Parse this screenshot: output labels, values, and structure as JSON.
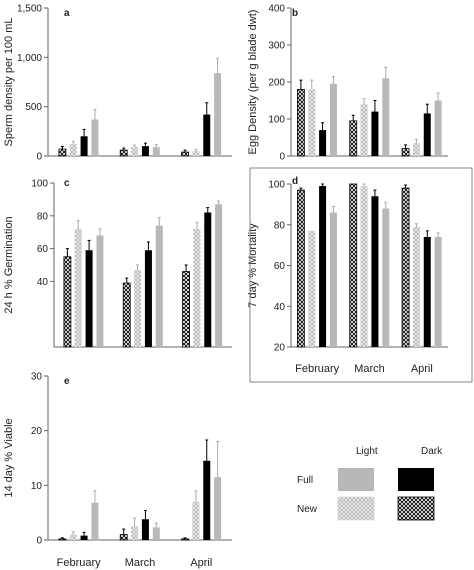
{
  "colors": {
    "full_light": "#b8b8b8",
    "full_dark": "#000000",
    "new_light_fill": "#e6e6e6",
    "new_dark_fill": "#ffffff",
    "error": "#444444"
  },
  "legend": {
    "col_light": "Light",
    "col_dark": "Dark",
    "row_full": "Full",
    "row_new": "New"
  },
  "chart_data": [
    {
      "letter": "a",
      "type": "bar",
      "ylabel": "Sperm density per 100 mL",
      "ylim": [
        0,
        1500
      ],
      "yticks": [
        0,
        500,
        1000,
        1500
      ],
      "yticklabels": [
        "0",
        "500",
        "1,000",
        "1,500"
      ],
      "categories": [
        "February",
        "March",
        "April"
      ],
      "show_categories": false,
      "series": [
        {
          "name": "New Dark",
          "values": [
            70,
            60,
            40
          ],
          "errors": [
            25,
            20,
            20
          ]
        },
        {
          "name": "New Light",
          "values": [
            120,
            90,
            50
          ],
          "errors": [
            30,
            20,
            15
          ]
        },
        {
          "name": "Full Dark",
          "values": [
            200,
            100,
            420
          ],
          "errors": [
            70,
            30,
            120
          ]
        },
        {
          "name": "Full Light",
          "values": [
            370,
            90,
            840
          ],
          "errors": [
            100,
            25,
            150
          ]
        }
      ]
    },
    {
      "letter": "b",
      "type": "bar",
      "ylabel": "Egg Density (per g blade dwt)",
      "ylim": [
        0,
        400
      ],
      "yticks": [
        0,
        100,
        200,
        300,
        400
      ],
      "yticklabels": [
        "0",
        "100",
        "200",
        "300",
        "400"
      ],
      "categories": [
        "February",
        "March",
        "April"
      ],
      "show_categories": false,
      "series": [
        {
          "name": "New Dark",
          "values": [
            180,
            95,
            20
          ],
          "errors": [
            25,
            15,
            10
          ]
        },
        {
          "name": "New Light",
          "values": [
            180,
            140,
            35
          ],
          "errors": [
            25,
            15,
            10
          ]
        },
        {
          "name": "Full Dark",
          "values": [
            70,
            120,
            115
          ],
          "errors": [
            20,
            30,
            25
          ]
        },
        {
          "name": "Full Light",
          "values": [
            195,
            210,
            150
          ],
          "errors": [
            20,
            30,
            20
          ]
        }
      ]
    },
    {
      "letter": "c",
      "type": "bar",
      "ylabel": "24 h % Germination",
      "ylim": [
        0,
        100
      ],
      "yticks": [
        40,
        60,
        80,
        100
      ],
      "yticklabels": [
        "40",
        "60",
        "80",
        "100"
      ],
      "categories": [
        "February",
        "March",
        "April"
      ],
      "show_categories": false,
      "series": [
        {
          "name": "New Dark",
          "values": [
            55,
            39,
            46
          ],
          "errors": [
            5,
            3,
            4
          ]
        },
        {
          "name": "New Light",
          "values": [
            72,
            47,
            72
          ],
          "errors": [
            5,
            3,
            4
          ]
        },
        {
          "name": "Full Dark",
          "values": [
            59,
            59,
            82
          ],
          "errors": [
            6,
            5,
            3
          ]
        },
        {
          "name": "Full Light",
          "values": [
            68,
            74,
            87
          ],
          "errors": [
            4,
            5,
            2
          ]
        }
      ]
    },
    {
      "letter": "d",
      "type": "bar",
      "ylabel": "7 day % Mortality",
      "ylim": [
        20,
        100
      ],
      "yticks": [
        20,
        40,
        60,
        80,
        100
      ],
      "yticklabels": [
        "20",
        "40",
        "60",
        "80",
        "100"
      ],
      "categories": [
        "February",
        "March",
        "April"
      ],
      "show_categories": true,
      "series": [
        {
          "name": "New Dark",
          "values": [
            97,
            100,
            98
          ],
          "errors": [
            1,
            0,
            1.5
          ]
        },
        {
          "name": "New Light",
          "values": [
            77,
            99,
            79
          ],
          "errors": [
            0,
            1,
            1.5
          ]
        },
        {
          "name": "Full Dark",
          "values": [
            99,
            94,
            74
          ],
          "errors": [
            1,
            3,
            3
          ]
        },
        {
          "name": "Full Light",
          "values": [
            86,
            88,
            74
          ],
          "errors": [
            3,
            3,
            2
          ]
        }
      ]
    },
    {
      "letter": "e",
      "type": "bar",
      "ylabel": "14 day % Viable",
      "ylim": [
        0,
        30
      ],
      "yticks": [
        0,
        10,
        20,
        30
      ],
      "yticklabels": [
        "0",
        "10",
        "20",
        "30"
      ],
      "categories": [
        "February",
        "March",
        "April"
      ],
      "show_categories": true,
      "series": [
        {
          "name": "New Dark",
          "values": [
            0.2,
            1,
            0.2
          ],
          "errors": [
            0.2,
            1,
            0.2
          ]
        },
        {
          "name": "New Light",
          "values": [
            1,
            2.5,
            7
          ],
          "errors": [
            0.5,
            1.5,
            2
          ]
        },
        {
          "name": "Full Dark",
          "values": [
            0.8,
            3.8,
            14.5
          ],
          "errors": [
            0.6,
            1.6,
            3.8
          ]
        },
        {
          "name": "Full Light",
          "values": [
            6.8,
            2.3,
            11.5
          ],
          "errors": [
            2.2,
            0.8,
            6.5
          ]
        }
      ]
    }
  ]
}
